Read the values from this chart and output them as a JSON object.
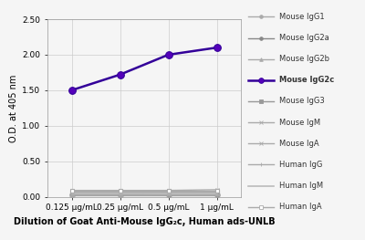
{
  "x_labels": [
    "0.125 μg/mL",
    "0.25 μg/mL",
    "0.5 μg/mL",
    "1 μg/mL"
  ],
  "x_values": [
    0,
    1,
    2,
    3
  ],
  "series": [
    {
      "name": "Mouse IgG1",
      "values": [
        0.02,
        0.02,
        0.02,
        0.02
      ],
      "color": "#aaaaaa",
      "marker": "o",
      "lw": 1.0,
      "ms": 3.5,
      "bold": false,
      "mfc": "#aaaaaa"
    },
    {
      "name": "Mouse IgG2a",
      "values": [
        0.03,
        0.03,
        0.03,
        0.03
      ],
      "color": "#888888",
      "marker": "o",
      "lw": 1.0,
      "ms": 3.5,
      "bold": false,
      "mfc": "#888888"
    },
    {
      "name": "Mouse IgG2b",
      "values": [
        0.04,
        0.04,
        0.05,
        0.05
      ],
      "color": "#aaaaaa",
      "marker": "^",
      "lw": 1.0,
      "ms": 3.5,
      "bold": false,
      "mfc": "#aaaaaa"
    },
    {
      "name": "Mouse IgG2c",
      "values": [
        1.5,
        1.72,
        2.0,
        2.1
      ],
      "color": "#330099",
      "marker": "o",
      "lw": 1.8,
      "ms": 5.5,
      "bold": true,
      "mfc": "#5500bb"
    },
    {
      "name": "Mouse IgG3",
      "values": [
        0.06,
        0.06,
        0.06,
        0.07
      ],
      "color": "#999999",
      "marker": "s",
      "lw": 1.0,
      "ms": 3.5,
      "bold": false,
      "mfc": "#999999"
    },
    {
      "name": "Mouse IgM",
      "values": [
        0.09,
        0.09,
        0.09,
        0.1
      ],
      "color": "#aaaaaa",
      "marker": "x",
      "lw": 1.0,
      "ms": 3.5,
      "bold": false,
      "mfc": "#aaaaaa"
    },
    {
      "name": "Mouse IgA",
      "values": [
        0.07,
        0.07,
        0.07,
        0.07
      ],
      "color": "#aaaaaa",
      "marker": "x",
      "lw": 1.0,
      "ms": 3.5,
      "bold": false,
      "mfc": "#aaaaaa"
    },
    {
      "name": "Human IgG",
      "values": [
        0.03,
        0.03,
        0.03,
        0.03
      ],
      "color": "#aaaaaa",
      "marker": "+",
      "lw": 1.0,
      "ms": 3.5,
      "bold": false,
      "mfc": "#aaaaaa"
    },
    {
      "name": "Human IgM",
      "values": [
        0.05,
        0.05,
        0.05,
        0.05
      ],
      "color": "#bbbbbb",
      "marker": "None",
      "lw": 1.2,
      "ms": 0,
      "bold": false,
      "mfc": "#bbbbbb"
    },
    {
      "name": "Human IgA",
      "values": [
        0.08,
        0.08,
        0.08,
        0.08
      ],
      "color": "#aaaaaa",
      "marker": "s",
      "lw": 1.0,
      "ms": 3.5,
      "bold": false,
      "mfc": "white"
    }
  ],
  "ylabel": "O.D. at 405 nm",
  "xlabel": "Dilution of Goat Anti-Mouse IgG₂c, Human ads-UNLB",
  "ylim": [
    0.0,
    2.5
  ],
  "yticks": [
    0.0,
    0.5,
    1.0,
    1.5,
    2.0,
    2.5
  ],
  "bg_color": "#f5f5f5",
  "grid_color": "#cccccc",
  "plot_bg": "#f5f5f5"
}
